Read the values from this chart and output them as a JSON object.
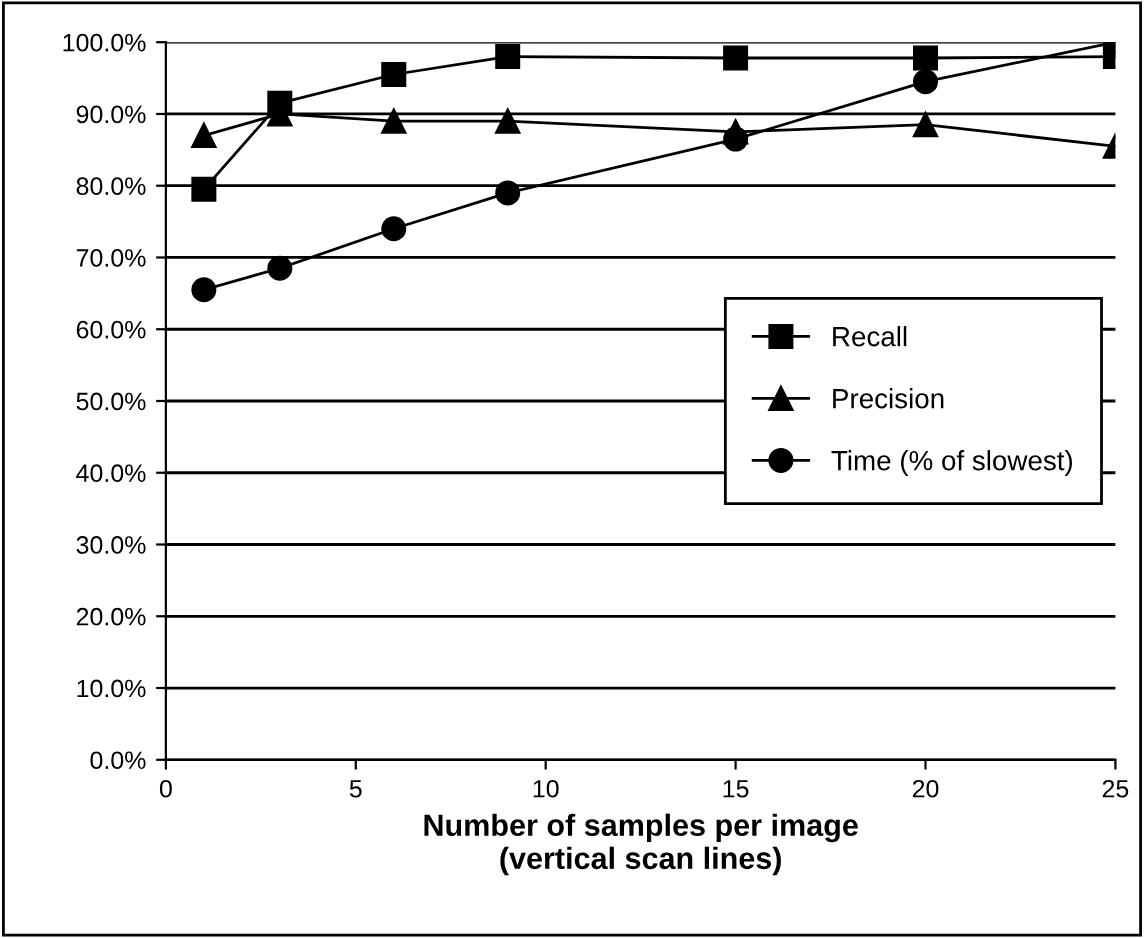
{
  "chart_data": {
    "type": "line",
    "xlabel": "Number of samples per image\n(vertical scan lines)",
    "x": [
      1,
      3,
      6,
      9,
      15,
      20,
      25
    ],
    "series": [
      {
        "name": "Recall",
        "color": "#000000",
        "marker": "square",
        "values": [
          79.5,
          91.5,
          95.5,
          98,
          97.8,
          97.8,
          98
        ]
      },
      {
        "name": "Precision",
        "color": "#000000",
        "marker": "triangle",
        "values": [
          87,
          90,
          89,
          89,
          87.5,
          88.5,
          85.5
        ]
      },
      {
        "name": "Time (% of slowest)",
        "color": "#000000",
        "marker": "circle",
        "values": [
          65.5,
          68.5,
          74,
          79,
          86.5,
          94.5,
          100
        ]
      }
    ],
    "xlim": [
      0,
      25
    ],
    "xticks": [
      0,
      5,
      10,
      15,
      20,
      25
    ],
    "ylim": [
      0,
      100
    ],
    "yticks": [
      {
        "value": 0,
        "label": "0.0%"
      },
      {
        "value": 10,
        "label": "10.0%"
      },
      {
        "value": 20,
        "label": "20.0%"
      },
      {
        "value": 30,
        "label": "30.0%"
      },
      {
        "value": 40,
        "label": "40.0%"
      },
      {
        "value": 50,
        "label": "50.0%"
      },
      {
        "value": 60,
        "label": "60.0%"
      },
      {
        "value": 70,
        "label": "70.0%"
      },
      {
        "value": 80,
        "label": "80.0%"
      },
      {
        "value": 90,
        "label": "90.0%"
      },
      {
        "value": 100,
        "label": "100.0%"
      }
    ],
    "grid": "y",
    "legend": "center right",
    "line_style": "solid"
  }
}
